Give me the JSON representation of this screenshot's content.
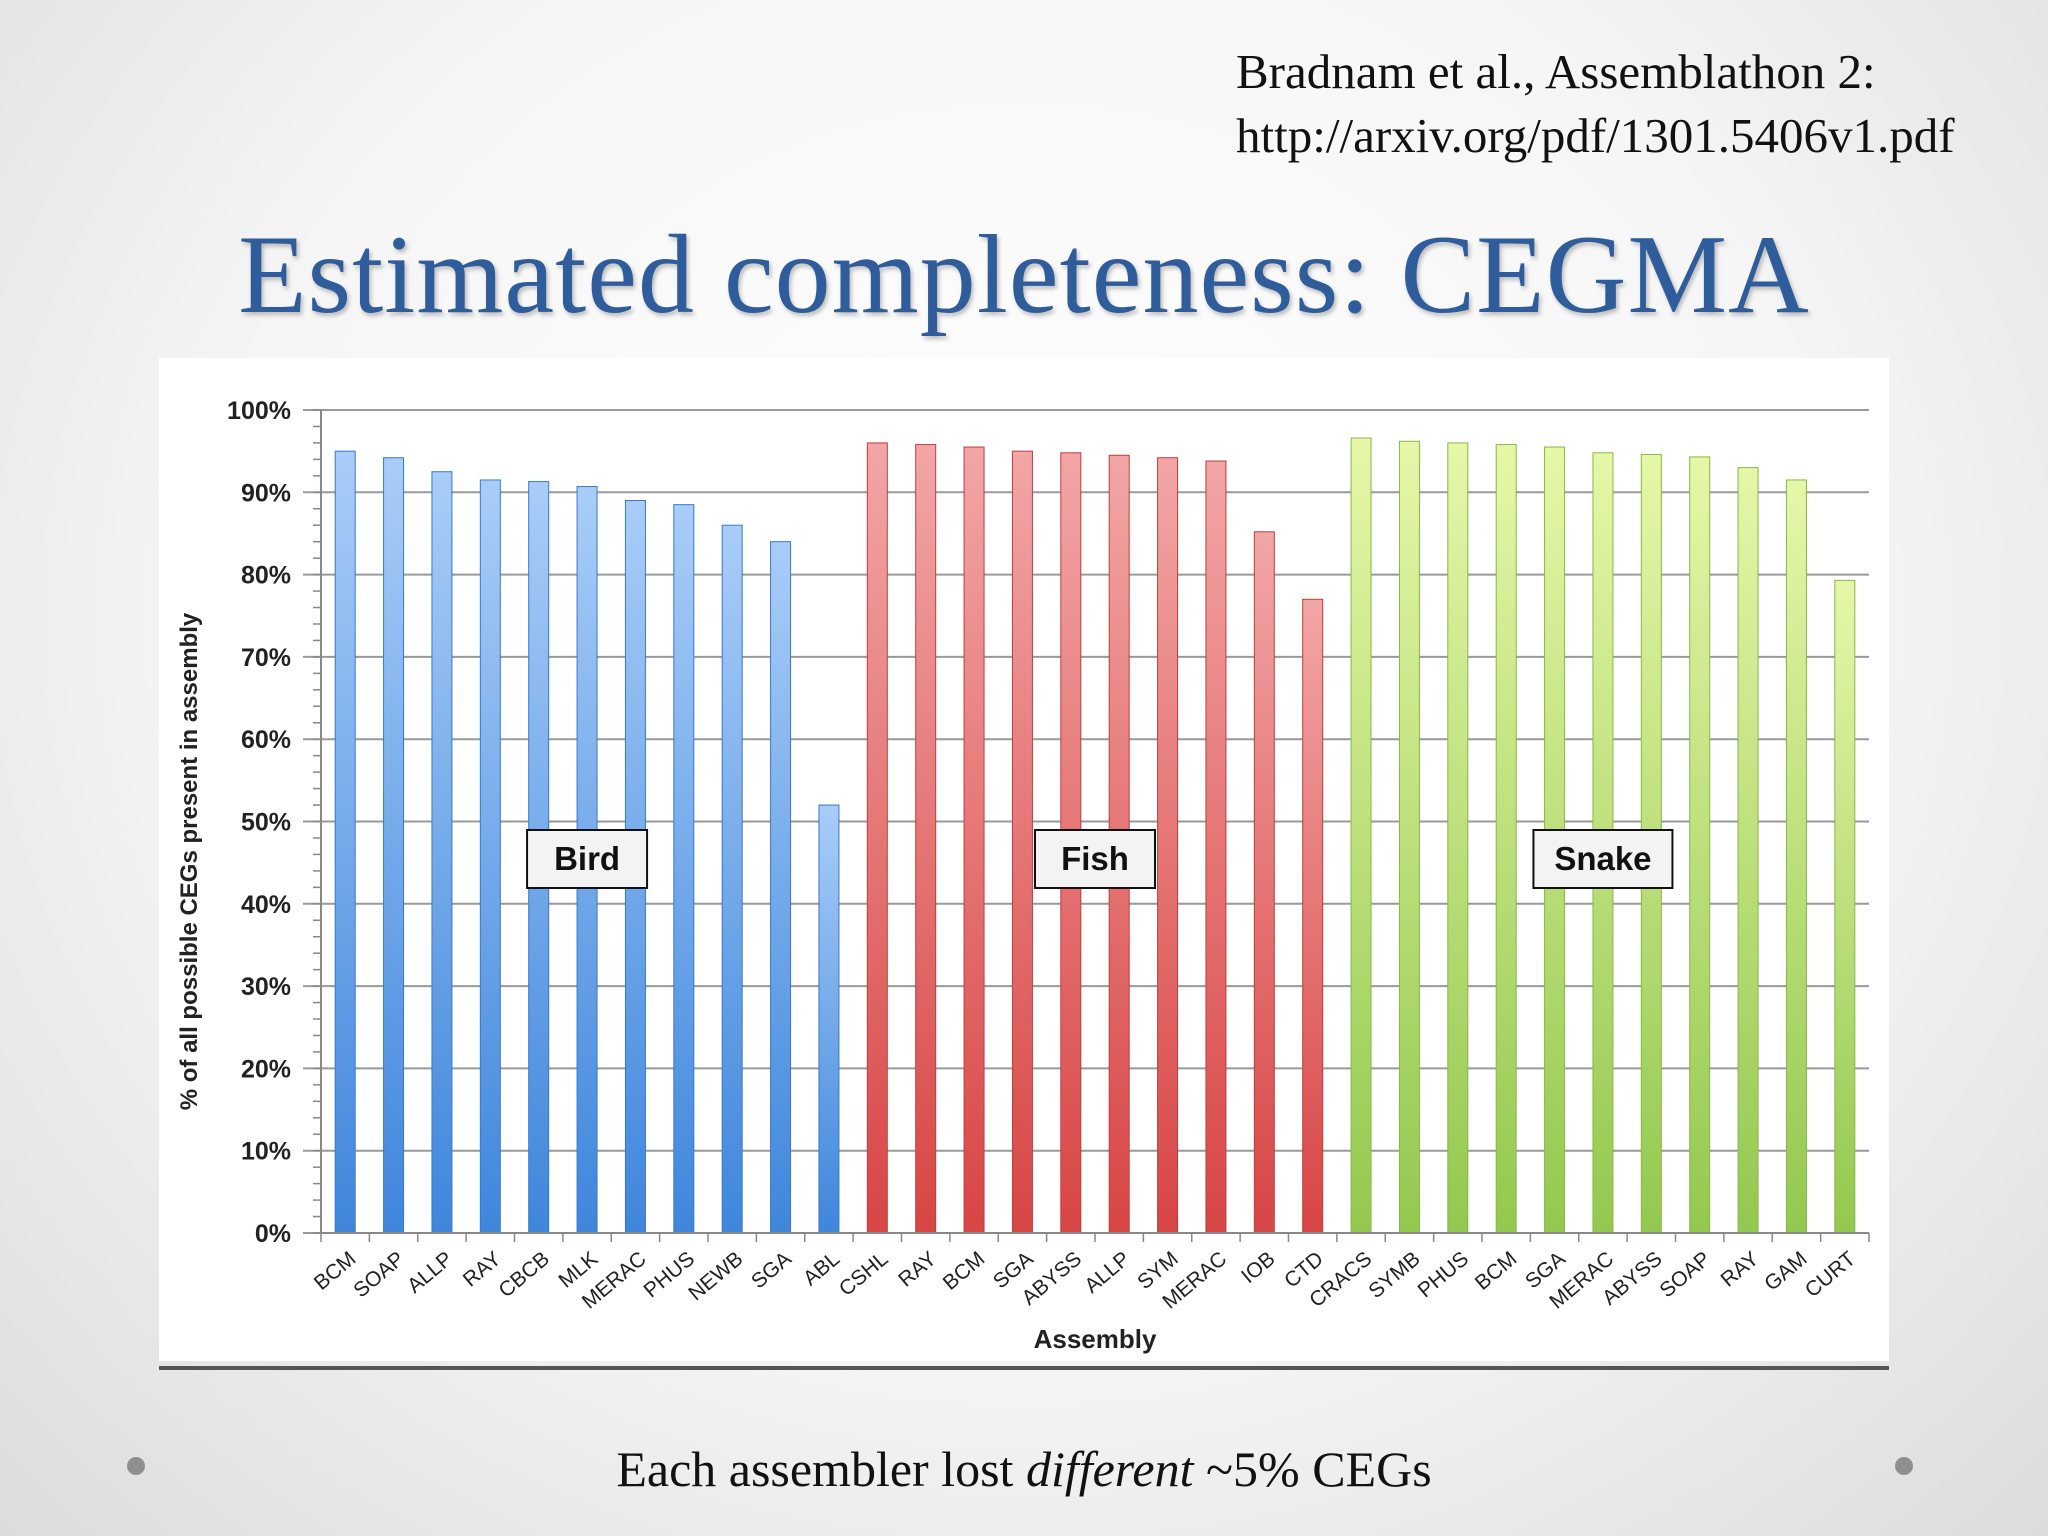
{
  "citation": {
    "line1": "Bradnam et al., Assemblathon 2:",
    "line2": "http://arxiv.org/pdf/1301.5406v1.pdf"
  },
  "title": "Estimated completeness: CEGMA",
  "footer": {
    "pre": "Each assembler lost ",
    "emph": "different",
    "post": " ~5% CEGs"
  },
  "chart_data": {
    "type": "bar",
    "title": "",
    "xlabel": "Assembly",
    "ylabel": "% of all possible CEGs present in assembly",
    "ylim": [
      0,
      100
    ],
    "yticks": [
      "0%",
      "10%",
      "20%",
      "30%",
      "40%",
      "50%",
      "60%",
      "70%",
      "80%",
      "90%",
      "100%"
    ],
    "grid": true,
    "groups": [
      {
        "name": "Bird",
        "color": "#4d90e0",
        "categories": [
          "BCM",
          "SOAP",
          "ALLP",
          "RAY",
          "CBCB",
          "MLK",
          "MERAC",
          "PHUS",
          "NEWB",
          "SGA",
          "ABL"
        ],
        "values": [
          95,
          94.2,
          92.5,
          91.5,
          91.3,
          90.7,
          89,
          88.5,
          86,
          84,
          52
        ]
      },
      {
        "name": "Fish",
        "color": "#e05858",
        "categories": [
          "CSHL",
          "RAY",
          "BCM",
          "SGA",
          "ABYSS",
          "ALLP",
          "SYM",
          "MERAC",
          "IOB",
          "CTD"
        ],
        "values": [
          96,
          95.8,
          95.5,
          95,
          94.8,
          94.5,
          94.2,
          93.8,
          85.2,
          77
        ]
      },
      {
        "name": "Snake",
        "color": "#9fd060",
        "categories": [
          "CRACS",
          "SYMB",
          "PHUS",
          "BCM",
          "SGA",
          "MERAC",
          "ABYSS",
          "SOAP",
          "RAY",
          "GAM",
          "CURT"
        ],
        "values": [
          96.6,
          96.2,
          96,
          95.8,
          95.5,
          94.8,
          94.6,
          94.3,
          93,
          91.5,
          79.3
        ]
      }
    ]
  }
}
